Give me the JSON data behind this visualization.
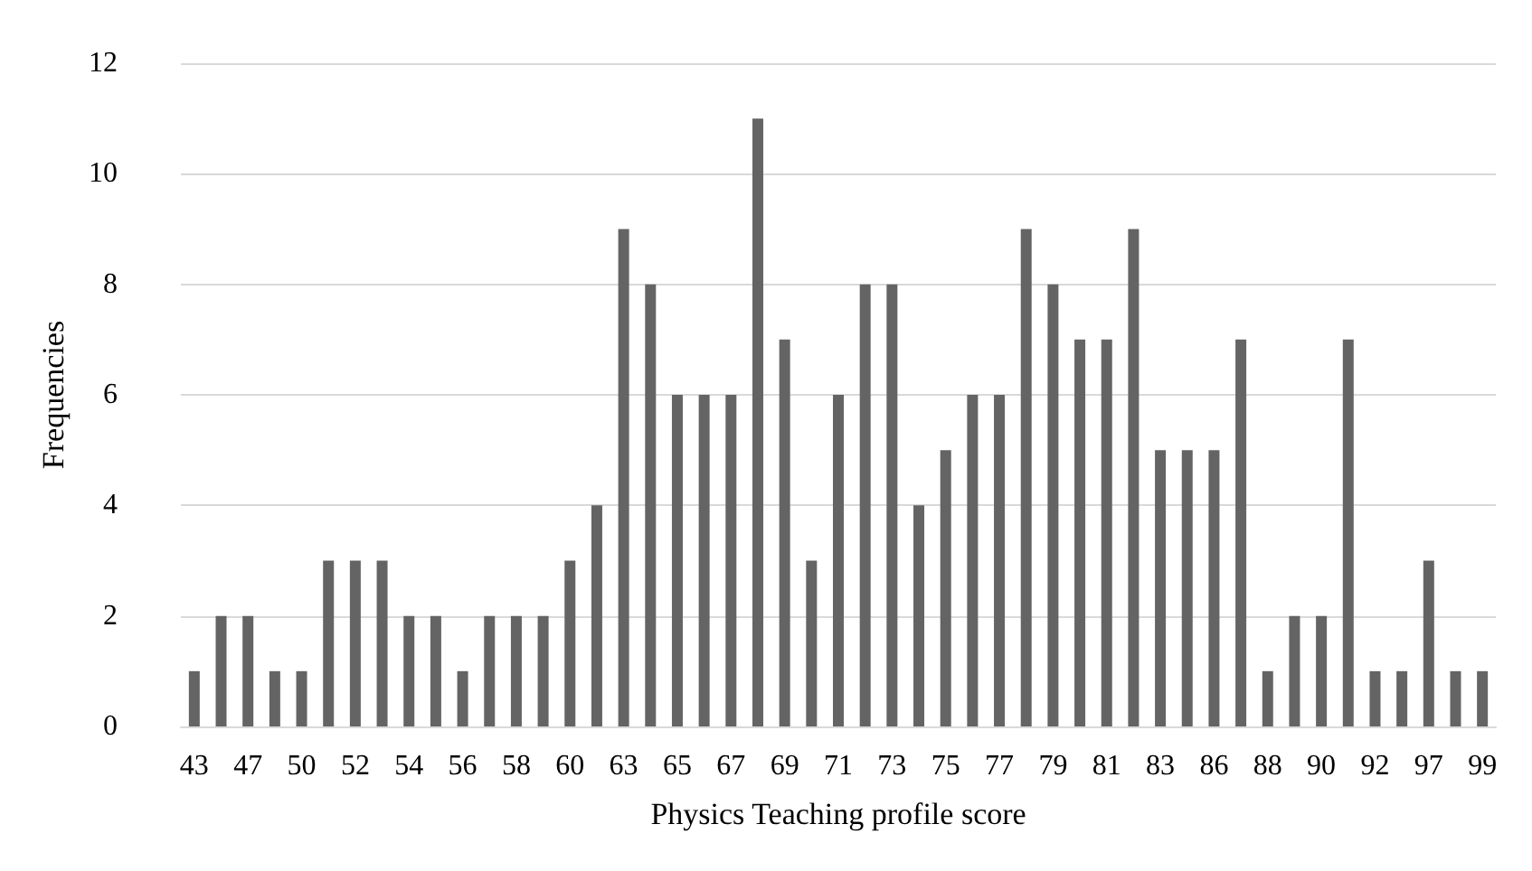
{
  "chart_data": {
    "type": "bar",
    "xlabel": "Physics Teaching profile score",
    "ylabel": "Frequencies",
    "categories": [
      "43",
      null,
      "47",
      null,
      "50",
      null,
      "52",
      null,
      "54",
      null,
      "56",
      null,
      "58",
      null,
      "60",
      null,
      "63",
      null,
      "65",
      null,
      "67",
      null,
      "69",
      null,
      "71",
      null,
      "73",
      null,
      "75",
      null,
      "77",
      null,
      "79",
      null,
      "81",
      null,
      "83",
      null,
      "86",
      null,
      "88",
      null,
      "90",
      null,
      "92",
      null,
      "97",
      null,
      "99"
    ],
    "values": [
      1,
      2,
      2,
      1,
      1,
      3,
      3,
      3,
      2,
      2,
      1,
      2,
      2,
      2,
      3,
      4,
      9,
      8,
      6,
      6,
      6,
      11,
      7,
      3,
      6,
      8,
      8,
      4,
      5,
      6,
      6,
      9,
      8,
      7,
      7,
      9,
      5,
      5,
      5,
      7,
      1,
      2,
      2,
      7,
      1,
      1,
      3,
      1,
      1
    ],
    "color": "#646464",
    "ylim": [
      0,
      12
    ],
    "yticks": [
      0,
      2,
      4,
      6,
      8,
      10,
      12
    ],
    "grid": "y"
  }
}
